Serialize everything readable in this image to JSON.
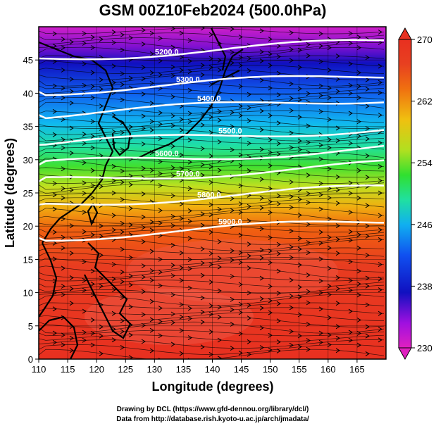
{
  "title": "GSM 00Z10Feb2024 (500.0hPa)",
  "x_axis": {
    "label": "Longitude (degrees)",
    "ticks": [
      "110",
      "115",
      "120",
      "125",
      "130",
      "135",
      "140",
      "145",
      "150",
      "155",
      "160",
      "165"
    ]
  },
  "y_axis": {
    "label": "Latitude  (degrees)",
    "ticks": [
      "0",
      "5",
      "10",
      "15",
      "20",
      "25",
      "30",
      "35",
      "40",
      "45"
    ]
  },
  "colorbar": {
    "ticks": [
      "270",
      "262",
      "254",
      "246",
      "238",
      "230"
    ],
    "range": [
      230,
      270
    ],
    "colors": [
      "#e020c0",
      "#a010e0",
      "#1010c0",
      "#1050f0",
      "#10b0f0",
      "#20e0a0",
      "#30e030",
      "#b0e020",
      "#f0c010",
      "#f07010",
      "#e84020",
      "#e83020"
    ]
  },
  "contours": [
    {
      "label": "5200.0",
      "lat": 46.5
    },
    {
      "label": "5300.0",
      "lat": 41.5
    },
    {
      "label": "5400.0",
      "lat": 38.0
    },
    {
      "label": "5500.0",
      "lat": 33.5
    },
    {
      "label": "5600.0",
      "lat": 30.5
    },
    {
      "label": "5700.0",
      "lat": 28.0
    },
    {
      "label": "5800.0",
      "lat": 24.5
    },
    {
      "label": "5900.0",
      "lat": 19.5
    }
  ],
  "credits": {
    "line1": "Drawing by DCL (https://www.gfd-dennou.org/library/dcl/)",
    "line2": "Data from http://database.rish.kyoto-u.ac.jp/arch/jmadata/"
  }
}
